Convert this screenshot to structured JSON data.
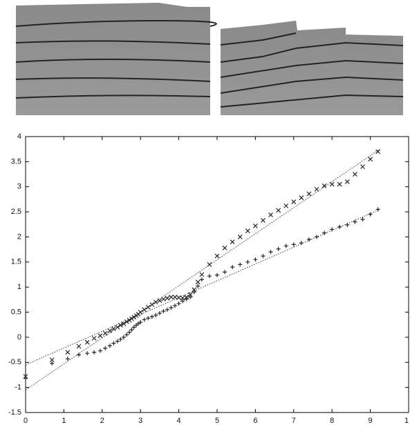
{
  "chart_data": {
    "type": "scatter",
    "x": [
      0,
      0.69,
      1.1,
      1.39,
      1.61,
      1.79,
      1.95,
      2.08,
      2.2,
      2.3,
      2.4,
      2.48,
      2.56,
      2.64,
      2.71,
      2.77,
      2.83,
      2.89,
      2.94,
      3.0,
      3.1,
      3.2,
      3.3,
      3.4,
      3.5,
      3.6,
      3.7,
      3.8,
      3.9,
      4.0,
      4.1,
      4.2,
      4.3,
      4.4,
      4.5,
      4.6,
      4.8,
      5.0,
      5.2,
      5.4,
      5.6,
      5.8,
      6.0,
      6.2,
      6.4,
      6.6,
      6.8,
      7.0,
      7.2,
      7.4,
      7.6,
      7.8,
      8.0,
      8.2,
      8.4,
      8.6,
      8.8,
      9.0,
      9.2
    ],
    "series": [
      {
        "marker": "x",
        "color": "#222222",
        "values": [
          -0.78,
          -0.45,
          -0.3,
          -0.18,
          -0.1,
          -0.02,
          0.03,
          0.08,
          0.13,
          0.17,
          0.2,
          0.24,
          0.27,
          0.31,
          0.34,
          0.37,
          0.4,
          0.43,
          0.46,
          0.5,
          0.55,
          0.6,
          0.65,
          0.7,
          0.73,
          0.76,
          0.78,
          0.8,
          0.8,
          0.79,
          0.78,
          0.8,
          0.85,
          0.95,
          1.1,
          1.25,
          1.45,
          1.62,
          1.78,
          1.9,
          2.0,
          2.12,
          2.22,
          2.33,
          2.44,
          2.53,
          2.62,
          2.7,
          2.78,
          2.86,
          2.95,
          3.02,
          3.05,
          3.05,
          3.1,
          3.25,
          3.4,
          3.55,
          3.7
        ]
      },
      {
        "marker": "+",
        "color": "#222222",
        "values": [
          -0.82,
          -0.52,
          -0.43,
          -0.35,
          -0.32,
          -0.3,
          -0.27,
          -0.22,
          -0.17,
          -0.12,
          -0.08,
          -0.04,
          0.0,
          0.05,
          0.1,
          0.15,
          0.2,
          0.24,
          0.27,
          0.3,
          0.35,
          0.38,
          0.41,
          0.44,
          0.48,
          0.52,
          0.55,
          0.59,
          0.63,
          0.67,
          0.72,
          0.76,
          0.8,
          0.9,
          1.02,
          1.15,
          1.22,
          1.24,
          1.3,
          1.4,
          1.45,
          1.5,
          1.55,
          1.62,
          1.7,
          1.76,
          1.82,
          1.85,
          1.88,
          1.95,
          2.0,
          2.08,
          2.15,
          2.2,
          2.24,
          2.3,
          2.35,
          2.45,
          2.55
        ]
      },
      {
        "style": "dotted",
        "color": "#333333",
        "x": [
          0,
          9.25
        ],
        "values": [
          -0.55,
          2.55
        ]
      },
      {
        "style": "dotted",
        "color": "#333333",
        "x": [
          0,
          9.25
        ],
        "values": [
          -1.05,
          3.75
        ]
      }
    ],
    "xlim": [
      0,
      10
    ],
    "xticks": [
      0,
      1,
      2,
      3,
      4,
      5,
      6,
      7,
      8,
      9,
      {
        "value": 10,
        "label": "1"
      }
    ],
    "ylim": [
      -1.5,
      4
    ],
    "yticks": [
      -1.5,
      -1,
      -0.5,
      0,
      0.5,
      1,
      1.5,
      2,
      2.5,
      3,
      3.5,
      4
    ]
  }
}
